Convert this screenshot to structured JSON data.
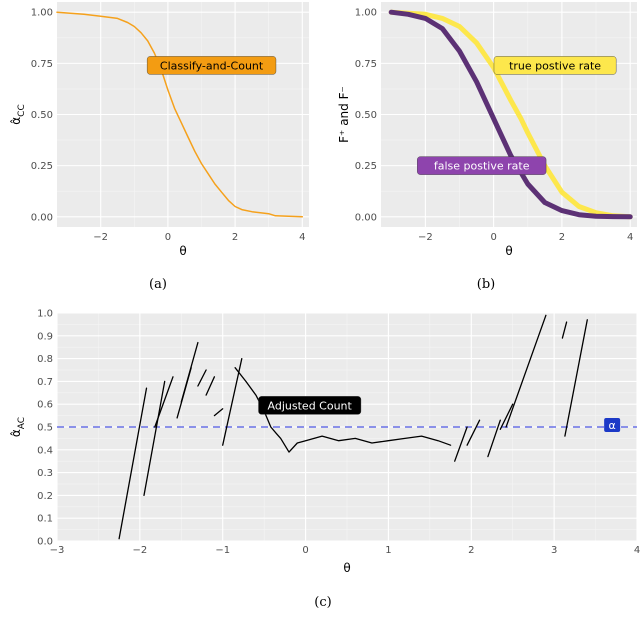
{
  "chart_data": [
    {
      "id": "a",
      "type": "line",
      "caption": "(a)",
      "xlabel": "θ",
      "ylabel": "α̂_CC",
      "xlim": [
        -3.3,
        4.2
      ],
      "ylim": [
        -0.05,
        1.05
      ],
      "xticks": [
        -2,
        0,
        2,
        4
      ],
      "yticks": [
        0.0,
        0.25,
        0.5,
        0.75,
        1.0
      ],
      "ytick_labels": [
        "0.00",
        "0.25",
        "0.50",
        "0.75",
        "1.00"
      ],
      "grid": true,
      "series": [
        {
          "name": "Classify-and-Count",
          "color": "#f5a11c",
          "x": [
            -3.3,
            -2.5,
            -2.0,
            -1.5,
            -1.2,
            -1.0,
            -0.8,
            -0.6,
            -0.4,
            -0.2,
            0.0,
            0.2,
            0.4,
            0.6,
            0.8,
            1.0,
            1.2,
            1.4,
            1.6,
            1.8,
            2.0,
            2.2,
            2.5,
            3.0,
            3.2,
            4.0
          ],
          "y": [
            1.0,
            0.99,
            0.98,
            0.97,
            0.95,
            0.93,
            0.9,
            0.86,
            0.8,
            0.72,
            0.62,
            0.53,
            0.46,
            0.39,
            0.32,
            0.26,
            0.21,
            0.16,
            0.12,
            0.08,
            0.05,
            0.035,
            0.025,
            0.015,
            0.005,
            0.0
          ]
        }
      ],
      "annotation": {
        "text": "Classify-and-Count",
        "x": 1.3,
        "y": 0.74,
        "fill": "#f39c12"
      }
    },
    {
      "id": "b",
      "type": "line",
      "caption": "(b)",
      "xlabel": "θ",
      "ylabel": "F⁺ and F⁻",
      "xlim": [
        -3.3,
        4.2
      ],
      "ylim": [
        -0.05,
        1.05
      ],
      "xticks": [
        -2,
        0,
        2,
        4
      ],
      "yticks": [
        0.0,
        0.25,
        0.5,
        0.75,
        1.0
      ],
      "ytick_labels": [
        "0.00",
        "0.25",
        "0.50",
        "0.75",
        "1.00"
      ],
      "grid": true,
      "series": [
        {
          "name": "true postive rate",
          "color": "#fde74c",
          "x": [
            -3,
            -2.5,
            -2,
            -1.5,
            -1,
            -0.5,
            0,
            0.5,
            0.8,
            1.0,
            1.5,
            2.0,
            2.5,
            3.0,
            3.5,
            4.0
          ],
          "y": [
            1.0,
            0.995,
            0.99,
            0.97,
            0.93,
            0.85,
            0.73,
            0.57,
            0.48,
            0.41,
            0.25,
            0.12,
            0.05,
            0.02,
            0.005,
            0.0
          ]
        },
        {
          "name": "false postive rate",
          "color": "#5c3175",
          "x": [
            -3,
            -2.5,
            -2,
            -1.5,
            -1,
            -0.5,
            0,
            0.5,
            1.0,
            1.5,
            2.0,
            2.5,
            3.0,
            3.5,
            4.0
          ],
          "y": [
            1.0,
            0.99,
            0.97,
            0.92,
            0.81,
            0.66,
            0.48,
            0.3,
            0.16,
            0.07,
            0.03,
            0.01,
            0.003,
            0.001,
            0.0
          ]
        }
      ],
      "annotations": [
        {
          "text": "true postive rate",
          "x": 1.8,
          "y": 0.74,
          "fill": "#fde74c",
          "color": "#000000"
        },
        {
          "text": "false postive rate",
          "x": -0.35,
          "y": 0.25,
          "fill": "#8e44ad",
          "color": "#ffffff"
        }
      ]
    },
    {
      "id": "c",
      "type": "line",
      "caption": "(c)",
      "xlabel": "θ",
      "ylabel": "α̂_AC",
      "xlim": [
        -3,
        4
      ],
      "ylim": [
        0.0,
        1.0
      ],
      "xticks": [
        -3,
        -2,
        -1,
        0,
        1,
        2,
        3,
        4
      ],
      "yticks": [
        0.0,
        0.1,
        0.2,
        0.3,
        0.4,
        0.5,
        0.6,
        0.7,
        0.8,
        0.9,
        1.0
      ],
      "ytick_labels": [
        "0.0",
        "0.1",
        "0.2",
        "0.3",
        "0.4",
        "0.5",
        "0.6",
        "0.7",
        "0.8",
        "0.9",
        "1.0"
      ],
      "grid": true,
      "series": [
        {
          "name": "",
          "color": "#000000",
          "x": [
            -2.25,
            -1.92
          ],
          "y": [
            0.01,
            0.67
          ]
        },
        {
          "name": "",
          "color": "#000000",
          "x": [
            -1.95,
            -1.7
          ],
          "y": [
            0.2,
            0.7
          ]
        },
        {
          "name": "",
          "color": "#000000",
          "x": [
            -1.82,
            -1.6
          ],
          "y": [
            0.5,
            0.72
          ]
        },
        {
          "name": "",
          "color": "#000000",
          "x": [
            -1.55,
            -1.38
          ],
          "y": [
            0.54,
            0.76
          ]
        },
        {
          "name": "",
          "color": "#000000",
          "x": [
            -1.5,
            -1.3
          ],
          "y": [
            0.61,
            0.87
          ]
        },
        {
          "name": "",
          "color": "#000000",
          "x": [
            -1.3,
            -1.2
          ],
          "y": [
            0.68,
            0.75
          ]
        },
        {
          "name": "",
          "color": "#000000",
          "x": [
            -1.2,
            -1.1
          ],
          "y": [
            0.64,
            0.72
          ]
        },
        {
          "name": "",
          "color": "#000000",
          "x": [
            -1.1,
            -1.0
          ],
          "y": [
            0.55,
            0.58
          ]
        },
        {
          "name": "",
          "color": "#000000",
          "x": [
            -1.0,
            -0.77
          ],
          "y": [
            0.42,
            0.8
          ]
        },
        {
          "name": "",
          "color": "#000000",
          "x": [
            -0.85,
            -0.72,
            -0.6,
            -0.5,
            -0.42,
            -0.35,
            -0.3,
            -0.2,
            -0.1,
            0.0,
            0.2,
            0.4,
            0.6,
            0.8,
            1.0,
            1.2,
            1.4,
            1.6,
            1.75
          ],
          "y": [
            0.76,
            0.7,
            0.64,
            0.57,
            0.5,
            0.47,
            0.45,
            0.39,
            0.43,
            0.44,
            0.46,
            0.44,
            0.45,
            0.43,
            0.44,
            0.45,
            0.46,
            0.44,
            0.42
          ]
        },
        {
          "name": "",
          "color": "#000000",
          "x": [
            1.8,
            1.95
          ],
          "y": [
            0.35,
            0.5
          ]
        },
        {
          "name": "",
          "color": "#000000",
          "x": [
            1.95,
            2.1
          ],
          "y": [
            0.42,
            0.53
          ]
        },
        {
          "name": "",
          "color": "#000000",
          "x": [
            2.2,
            2.35
          ],
          "y": [
            0.37,
            0.53
          ]
        },
        {
          "name": "",
          "color": "#000000",
          "x": [
            2.35,
            2.5
          ],
          "y": [
            0.49,
            0.6
          ]
        },
        {
          "name": "",
          "color": "#000000",
          "x": [
            2.42,
            2.9
          ],
          "y": [
            0.5,
            0.99
          ]
        },
        {
          "name": "",
          "color": "#000000",
          "x": [
            3.1,
            3.15
          ],
          "y": [
            0.89,
            0.96
          ]
        },
        {
          "name": "",
          "color": "#000000",
          "x": [
            3.13,
            3.4
          ],
          "y": [
            0.46,
            0.97
          ]
        }
      ],
      "reference_line": {
        "y": 0.5,
        "color": "#6b72e8",
        "style": "dashed",
        "label": "α"
      },
      "annotation": {
        "text": "Adjusted Count",
        "x": 0.05,
        "y": 0.595,
        "fill": "#000000",
        "color": "#ffffff"
      }
    }
  ]
}
